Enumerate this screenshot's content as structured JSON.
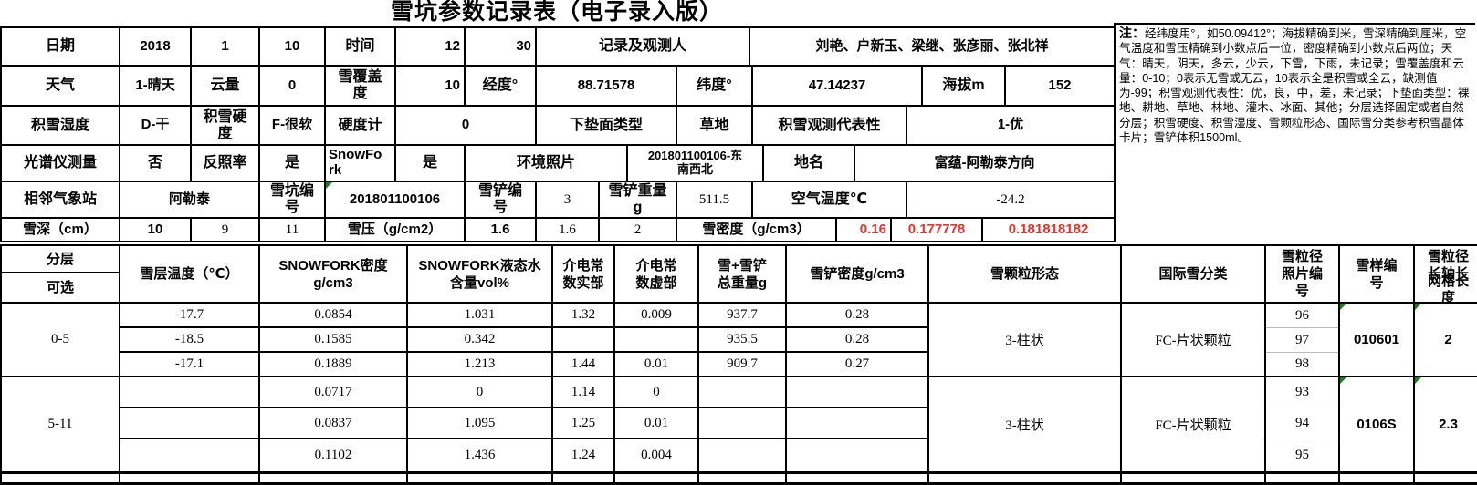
{
  "title": "雪坑参数记录表（电子录入版）",
  "colors": {
    "value_red": "#e8312a",
    "grid_black": "#000000",
    "indicator_green": "#1e7e1e",
    "photo_divider": "#bbbbbb",
    "background": "#ffffff"
  },
  "note": {
    "label": "注：",
    "text": "经纬度用°，如50.09412°；海拔精确到米，雪深精确到厘米，空气温度和雪压精确到小数点后一位，密度精确到小数点后两位；天气：晴天，阴天，多云，少云，下雪，下雨，未记录；雪覆盖度和云量：0-10；0表示无雪或无云，10表示全是积雪或全云，缺测值为-99；积雪观测代表性：优，良，中，差，未记录；下垫面类型：裸地、耕地、草地、林地、灌木、冰面、其他；分层选择固定或者自然分层；积雪硬度、积雪湿度、雪颗粒形态、国际雪分类参考积雪晶体卡片；雪铲体积1500ml。"
  },
  "table1_rows": [
    [
      "日期",
      "2018",
      "1",
      "10",
      "时间",
      "12",
      "30",
      "记录及观测人",
      "刘艳、户新玉、梁继、张彦丽、张北祥"
    ],
    [
      "天气",
      "1-晴天",
      "云量",
      "0",
      "雪覆盖度",
      "10",
      "经度°",
      "88.71578",
      "纬度°",
      "47.14237",
      "海拔m",
      "152"
    ],
    [
      "积雪湿度",
      "D-干",
      "积雪硬度",
      "F-很软",
      "硬度计",
      "0",
      "下垫面类型",
      "草地",
      "积雪观测代表性",
      "1-优"
    ],
    [
      "光谱仪测量",
      "否",
      "反照率",
      "是",
      "SnowFork",
      "是",
      "环境照片",
      "201801100106-东南西北",
      "地名",
      "富蕴-阿勒泰方向"
    ],
    [
      "相邻气象站",
      "阿勒泰",
      "雪坑编号",
      "201801100106",
      "雪铲编号",
      "3",
      "雪铲重量g",
      "511.5",
      "空气温度℃",
      "-24.2"
    ],
    [
      "雪深（cm）",
      "10",
      "9",
      "11",
      "雪压（g/cm2）",
      "1.6",
      "1.6",
      "2",
      "雪密度（g/cm3）",
      "0.16",
      "0.177778",
      "0.181818182"
    ]
  ],
  "table2": {
    "header": {
      "layer_top": "分层",
      "layer_bottom": "可选",
      "temp": "雪层温度（℃）",
      "sfd": "SNOWFORK密度\ng/cm3",
      "lwc": "SNOWFORK液态水\n含量vol%",
      "der": "介电常\n数实部",
      "dei": "介电常\n数虚部",
      "wt": "雪+雪铲\n总重量g",
      "sd": "雪铲密度g/cm3",
      "shape": "雪颗粒形态",
      "intl": "国际雪分类",
      "photos": "雪粒径\n照片编\n号",
      "sample": "雪样编\n号",
      "axis_lines": [
        "雪粒径",
        "长轴长",
        "网格长",
        "度"
      ]
    },
    "groups": [
      {
        "layer": "0-5",
        "temps": [
          "-17.7",
          "-18.5",
          "-17.1"
        ],
        "sfd": [
          "0.0854",
          "0.1585",
          "0.1889"
        ],
        "lwc": [
          "1.031",
          "0.342",
          "1.213"
        ],
        "der": [
          "1.32",
          "",
          "1.44"
        ],
        "dei": [
          "0.009",
          "",
          "0.01"
        ],
        "wt": [
          "937.7",
          "935.5",
          "909.7"
        ],
        "sd": [
          "0.28",
          "0.28",
          "0.27"
        ],
        "shape": "3-柱状",
        "intl": "FC-片状颗粒",
        "photos": [
          "96",
          "97",
          "98"
        ],
        "sample": "010601",
        "axis": "2"
      },
      {
        "layer": "5-11",
        "temps": [
          "",
          "",
          ""
        ],
        "sfd": [
          "0.0717",
          "0.0837",
          "0.1102"
        ],
        "lwc": [
          "0",
          "1.095",
          "1.436"
        ],
        "der": [
          "1.14",
          "1.25",
          "1.24"
        ],
        "dei": [
          "0",
          "0.01",
          "0.004"
        ],
        "wt": [
          "",
          "",
          ""
        ],
        "sd": [
          "",
          "",
          ""
        ],
        "shape": "3-柱状",
        "intl": "FC-片状颗粒",
        "photos": [
          "93",
          "94",
          "95"
        ],
        "sample": "0106S",
        "axis": "2.3"
      }
    ]
  }
}
